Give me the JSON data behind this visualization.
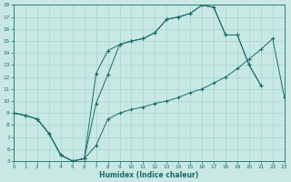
{
  "xlabel": "Humidex (Indice chaleur)",
  "bg_color": "#c8e8e4",
  "line_color": "#1a6b6b",
  "grid_color": "#a8d4d0",
  "xlim": [
    0,
    23
  ],
  "ylim": [
    5,
    18
  ],
  "xticks": [
    0,
    1,
    2,
    3,
    4,
    5,
    6,
    7,
    8,
    9,
    10,
    11,
    12,
    13,
    14,
    15,
    16,
    17,
    18,
    19,
    20,
    21,
    22,
    23
  ],
  "yticks": [
    5,
    6,
    7,
    8,
    9,
    10,
    11,
    12,
    13,
    14,
    15,
    16,
    17,
    18
  ],
  "line1_x": [
    0,
    1,
    2,
    3,
    4,
    5,
    6,
    7,
    8,
    9,
    10,
    11,
    12,
    13,
    14,
    15,
    16,
    17,
    18,
    19,
    20,
    21,
    22,
    23
  ],
  "line1_y": [
    9,
    8.8,
    8.5,
    7.3,
    5.5,
    5.0,
    5.2,
    6.3,
    8.5,
    9.0,
    9.3,
    9.5,
    9.8,
    10.0,
    10.3,
    10.7,
    11.0,
    11.5,
    12.0,
    12.7,
    13.5,
    14.3,
    15.2,
    10.3
  ],
  "line2_x": [
    0,
    1,
    2,
    3,
    4,
    5,
    6,
    7,
    8,
    9,
    10,
    11,
    12,
    13,
    14,
    15,
    16,
    17,
    18,
    19,
    20,
    21
  ],
  "line2_y": [
    9,
    8.8,
    8.5,
    7.3,
    5.5,
    5.0,
    5.2,
    12.3,
    14.2,
    14.7,
    15.0,
    15.2,
    15.7,
    16.8,
    17.0,
    17.3,
    18.0,
    17.8,
    15.5,
    15.5,
    13.0,
    11.3
  ],
  "line3_x": [
    0,
    1,
    2,
    3,
    4,
    5,
    6,
    7,
    8,
    9,
    10,
    11,
    12,
    13,
    14,
    15,
    16,
    17,
    18,
    19,
    20,
    21
  ],
  "line3_y": [
    9,
    8.8,
    8.5,
    7.3,
    5.5,
    5.0,
    5.2,
    9.8,
    12.2,
    14.7,
    15.0,
    15.2,
    15.7,
    16.8,
    17.0,
    17.3,
    18.0,
    17.8,
    15.5,
    15.5,
    13.0,
    11.3
  ]
}
